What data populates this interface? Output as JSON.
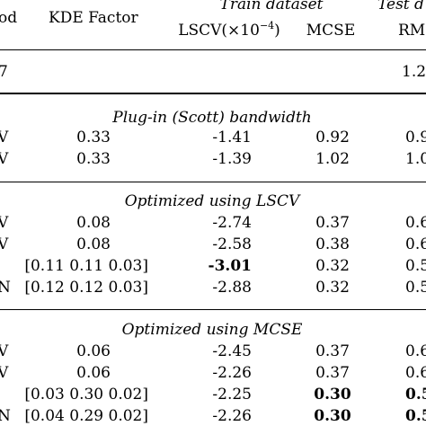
{
  "header": {
    "method_fragment": "od",
    "kde_factor": "KDE Factor",
    "train_group": "Train dataset",
    "test_group_fragment": "Test d",
    "lscv_prefix": "LSCV(×10",
    "lscv_exp": "−4",
    "lscv_suffix": ")",
    "mcse": "MCSE",
    "rmse_fragment": "RM"
  },
  "baseline": {
    "method_fragment": "7",
    "test_fragment": "1.2"
  },
  "sections": [
    {
      "title": "Plug-in (Scott) bandwidth",
      "rows": [
        {
          "method": "V",
          "kde": "0.33",
          "lscv": "-1.41",
          "mcse": "0.92",
          "test": "0.9",
          "lscv_bold": false,
          "mcse_bold": false,
          "test_bold": false
        },
        {
          "method": "V",
          "kde": "0.33",
          "lscv": "-1.39",
          "mcse": "1.02",
          "test": "1.0",
          "lscv_bold": false,
          "mcse_bold": false,
          "test_bold": false
        }
      ]
    },
    {
      "title": "Optimized using LSCV",
      "rows": [
        {
          "method": "V",
          "kde": "0.08",
          "lscv": "-2.74",
          "mcse": "0.37",
          "test": "0.6",
          "lscv_bold": false,
          "mcse_bold": false,
          "test_bold": false
        },
        {
          "method": "V",
          "kde": "0.08",
          "lscv": "-2.58",
          "mcse": "0.38",
          "test": "0.6",
          "lscv_bold": false,
          "mcse_bold": false,
          "test_bold": false
        },
        {
          "method": "",
          "kde": "[0.11 0.11 0.03]",
          "lscv": "-3.01",
          "mcse": "0.32",
          "test": "0.5",
          "lscv_bold": true,
          "mcse_bold": false,
          "test_bold": false
        },
        {
          "method": "N",
          "kde": "[0.12 0.12 0.03]",
          "lscv": "-2.88",
          "mcse": "0.32",
          "test": "0.5",
          "lscv_bold": false,
          "mcse_bold": false,
          "test_bold": false
        }
      ]
    },
    {
      "title": "Optimized using MCSE",
      "rows": [
        {
          "method": "V",
          "kde": "0.06",
          "lscv": "-2.45",
          "mcse": "0.37",
          "test": "0.6",
          "lscv_bold": false,
          "mcse_bold": false,
          "test_bold": false
        },
        {
          "method": "V",
          "kde": "0.06",
          "lscv": "-2.26",
          "mcse": "0.37",
          "test": "0.6",
          "lscv_bold": false,
          "mcse_bold": false,
          "test_bold": false
        },
        {
          "method": "",
          "kde": "[0.03 0.30 0.02]",
          "lscv": "-2.25",
          "mcse": "0.30",
          "test": "0.5",
          "lscv_bold": false,
          "mcse_bold": true,
          "test_bold": true
        },
        {
          "method": "N",
          "kde": "[0.04 0.29 0.02]",
          "lscv": "-2.26",
          "mcse": "0.30",
          "test": "0.5",
          "lscv_bold": false,
          "mcse_bold": true,
          "test_bold": true
        }
      ]
    }
  ]
}
